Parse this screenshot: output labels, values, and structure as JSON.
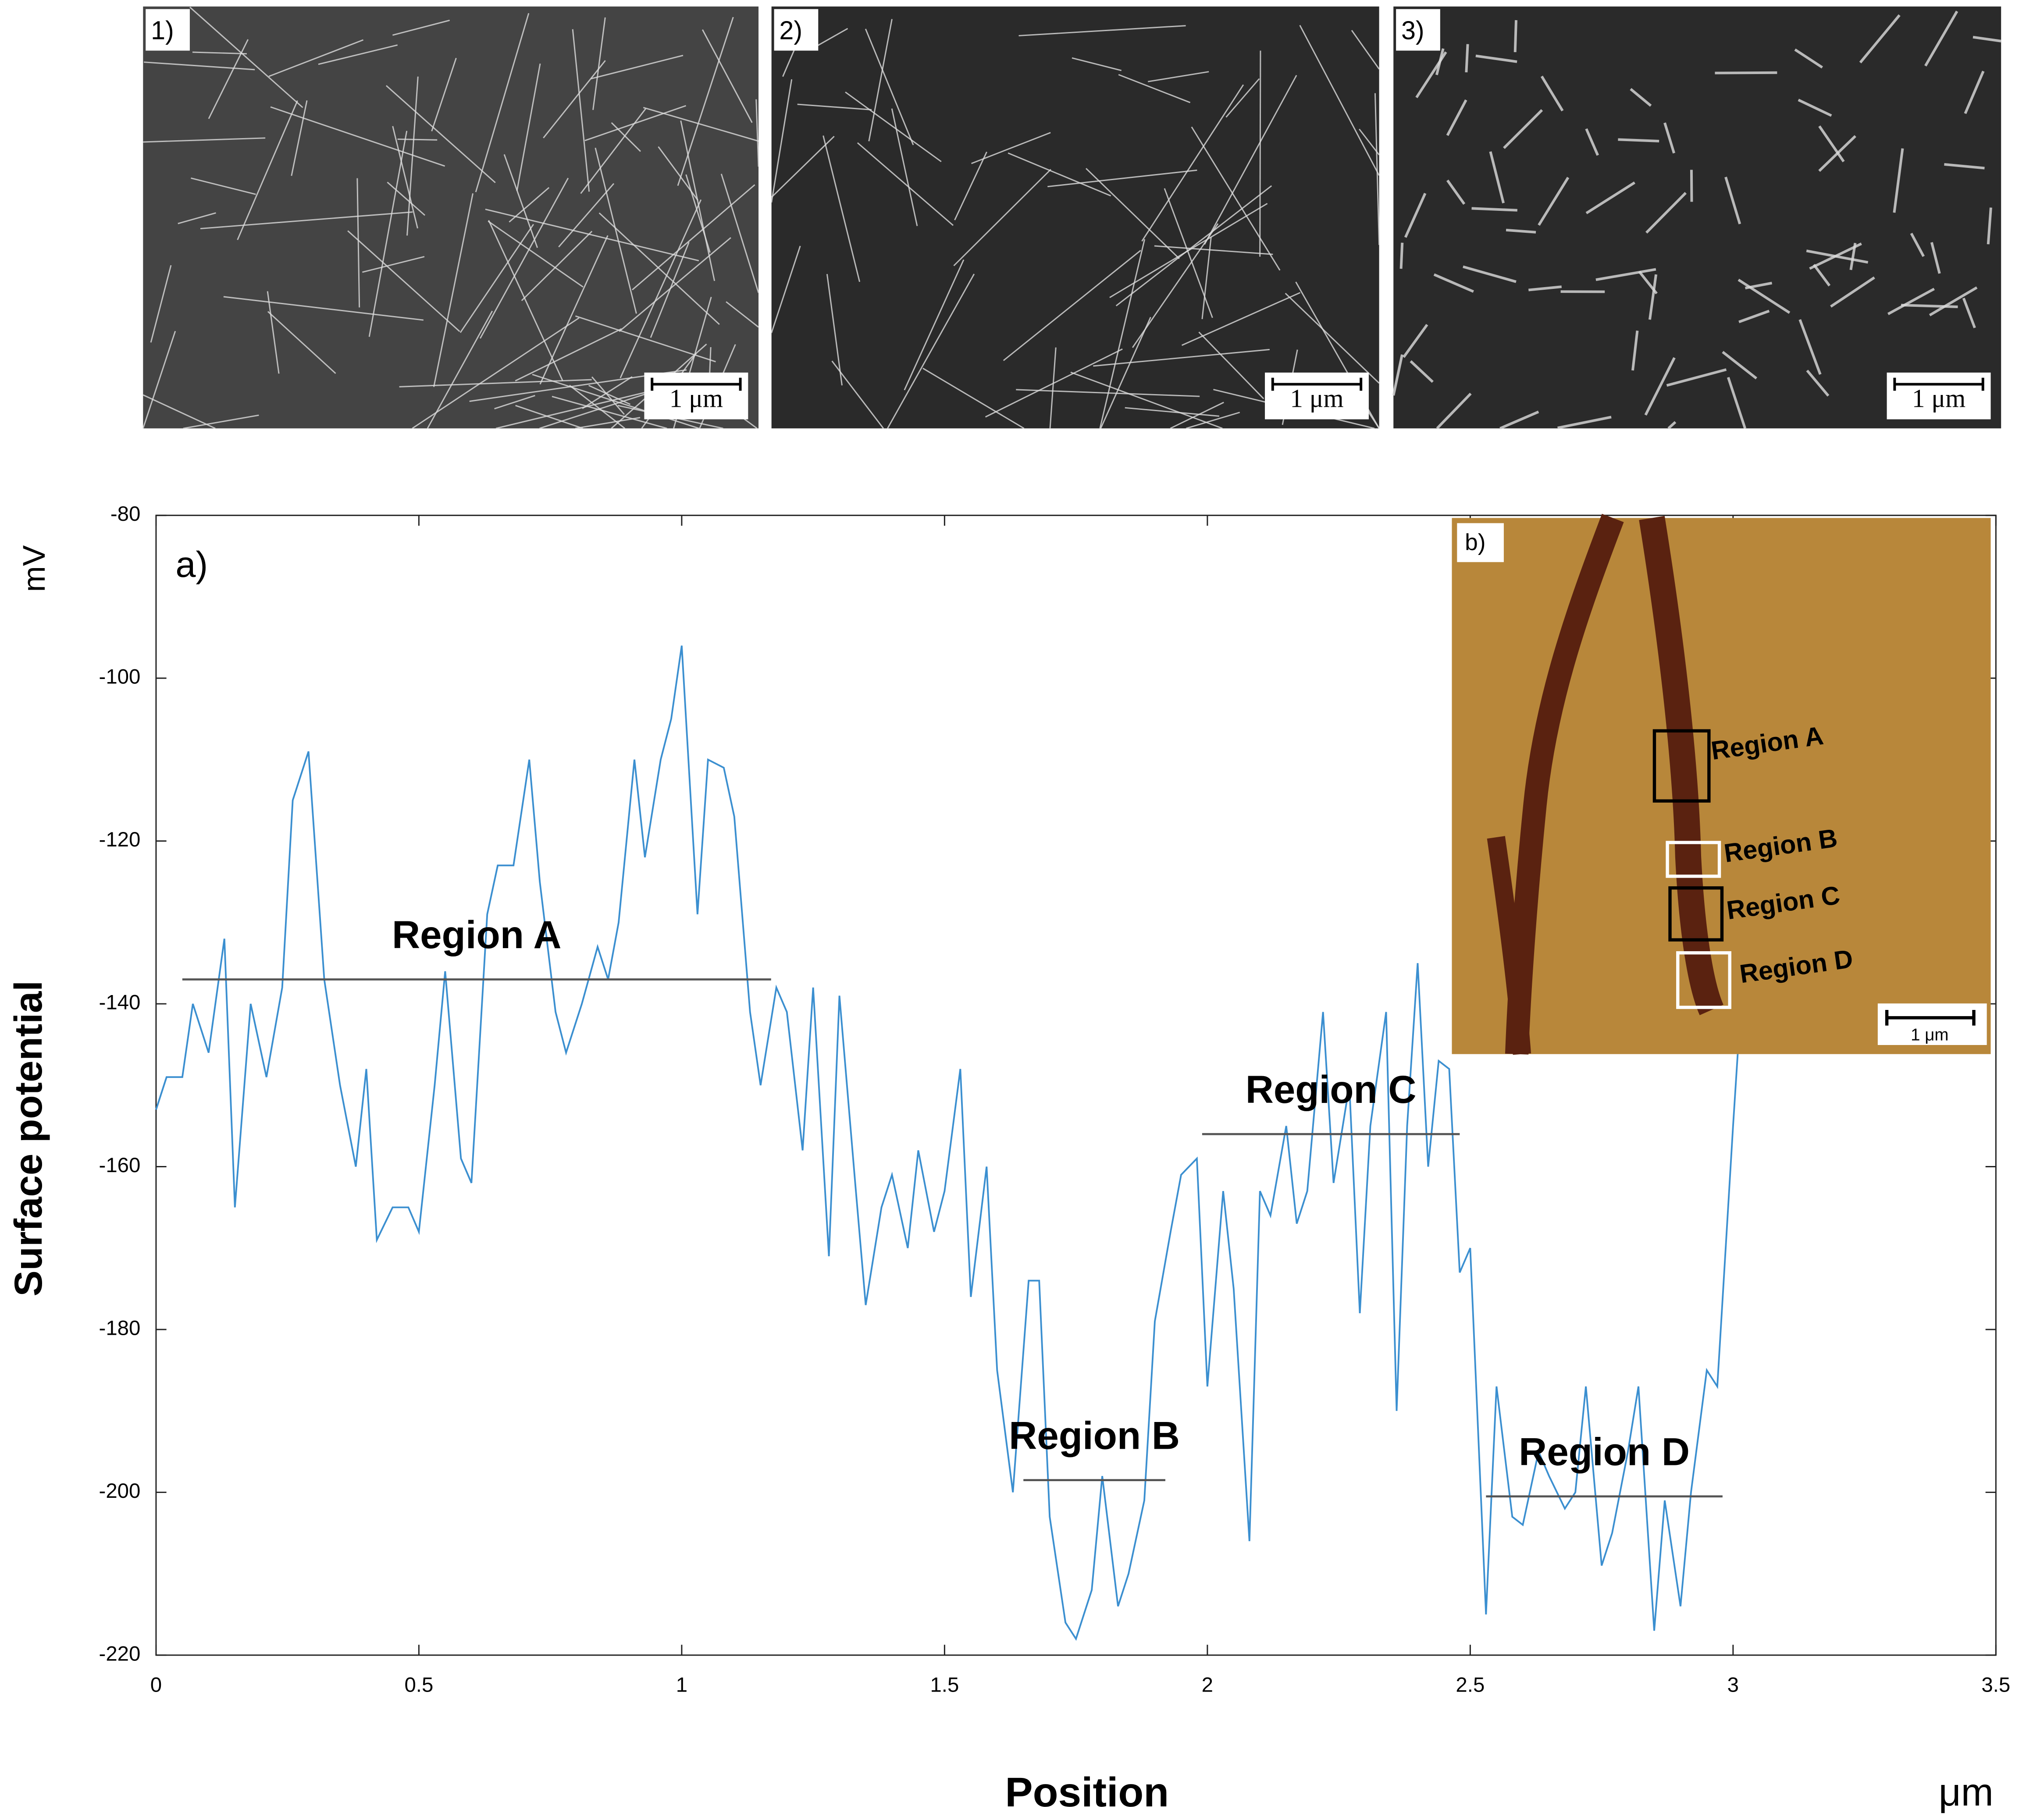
{
  "images": [
    {
      "label": "1)",
      "scale": "1 μm"
    },
    {
      "label": "2)",
      "scale": "1 μm"
    },
    {
      "label": "3)",
      "scale": "1 μm"
    }
  ],
  "inset": {
    "label": "b)",
    "regions": [
      "Region A",
      "Region B",
      "Region C",
      "Region D"
    ],
    "scale": "1 μm"
  },
  "chart_data": {
    "type": "line",
    "panel_label": "a)",
    "y_label": "Surface potential",
    "y_unit": "mV",
    "x_label": "Position",
    "x_unit": "μm",
    "xlim": [
      0,
      3.5
    ],
    "ylim": [
      -220,
      -80
    ],
    "xticks": [
      0,
      0.5,
      1,
      1.5,
      2,
      2.5,
      3,
      3.5
    ],
    "yticks": [
      -220,
      -200,
      -180,
      -160,
      -140,
      -120,
      -100,
      -80
    ],
    "color": "#3b8fd0",
    "x": [
      0,
      0.02,
      0.05,
      0.07,
      0.1,
      0.13,
      0.15,
      0.18,
      0.21,
      0.24,
      0.26,
      0.29,
      0.32,
      0.35,
      0.38,
      0.4,
      0.42,
      0.45,
      0.48,
      0.5,
      0.53,
      0.55,
      0.58,
      0.6,
      0.63,
      0.65,
      0.68,
      0.71,
      0.73,
      0.76,
      0.78,
      0.81,
      0.84,
      0.86,
      0.88,
      0.91,
      0.93,
      0.96,
      0.98,
      1.0,
      1.03,
      1.05,
      1.08,
      1.1,
      1.13,
      1.15,
      1.18,
      1.2,
      1.23,
      1.25,
      1.28,
      1.3,
      1.33,
      1.35,
      1.38,
      1.4,
      1.43,
      1.45,
      1.48,
      1.5,
      1.53,
      1.55,
      1.58,
      1.6,
      1.63,
      1.66,
      1.68,
      1.7,
      1.73,
      1.75,
      1.78,
      1.8,
      1.83,
      1.85,
      1.88,
      1.9,
      1.93,
      1.95,
      1.98,
      2.0,
      2.03,
      2.05,
      2.08,
      2.1,
      2.12,
      2.15,
      2.17,
      2.19,
      2.22,
      2.24,
      2.27,
      2.29,
      2.31,
      2.34,
      2.36,
      2.38,
      2.4,
      2.42,
      2.44,
      2.46,
      2.48,
      2.5,
      2.53,
      2.55,
      2.58,
      2.6,
      2.63,
      2.65,
      2.68,
      2.7,
      2.72,
      2.75,
      2.77,
      2.8,
      2.82,
      2.85,
      2.87,
      2.9,
      2.92,
      2.95,
      2.97,
      3.0,
      3.02
    ],
    "values": [
      -153,
      -149,
      -149,
      -140,
      -146,
      -132,
      -165,
      -140,
      -149,
      -138,
      -115,
      -109,
      -137,
      -150,
      -160,
      -148,
      -169,
      -165,
      -165,
      -168,
      -150,
      -136,
      -159,
      -162,
      -129,
      -123,
      -123,
      -110,
      -125,
      -141,
      -146,
      -140,
      -133,
      -137,
      -130,
      -110,
      -122,
      -110,
      -105,
      -96,
      -129,
      -110,
      -111,
      -117,
      -141,
      -150,
      -138,
      -141,
      -158,
      -138,
      -171,
      -139,
      -162,
      -177,
      -165,
      -161,
      -170,
      -158,
      -168,
      -163,
      -148,
      -176,
      -160,
      -185,
      -200,
      -174,
      -174,
      -203,
      -216,
      -218,
      -212,
      -198,
      -214,
      -210,
      -201,
      -179,
      -168,
      -161,
      -159,
      -187,
      -163,
      -175,
      -206,
      -163,
      -166,
      -155,
      -167,
      -163,
      -141,
      -162,
      -150,
      -178,
      -155,
      -141,
      -190,
      -155,
      -135,
      -160,
      -147,
      -148,
      -173,
      -170,
      -215,
      -187,
      -203,
      -204,
      -195,
      -198,
      -202,
      -200,
      -187,
      -209,
      -205,
      -195,
      -187,
      -217,
      -201,
      -214,
      -200,
      -185,
      -187,
      -155,
      -135
    ],
    "regions": [
      {
        "label": "Region A",
        "x": [
          0.05,
          1.17
        ],
        "y": -137
      },
      {
        "label": "Region B",
        "x": [
          1.65,
          1.92
        ],
        "y": -198.5
      },
      {
        "label": "Region C",
        "x": [
          1.99,
          2.48
        ],
        "y": -156
      },
      {
        "label": "Region D",
        "x": [
          2.53,
          2.98
        ],
        "y": -200.5
      }
    ]
  }
}
